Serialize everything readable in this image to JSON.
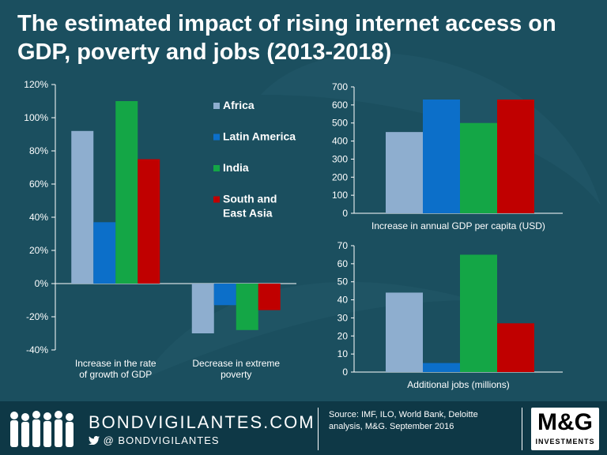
{
  "title": "The estimated impact of rising internet access on GDP, poverty and jobs (2013-2018)",
  "colors": {
    "background": "#1b4f5f",
    "axis": "#ffffff",
    "series": [
      "#8eaecf",
      "#0c6fc9",
      "#14a646",
      "#c00000"
    ]
  },
  "legend": [
    "Africa",
    "Latin America",
    "India",
    "South and East Asia"
  ],
  "chart_data": [
    {
      "type": "bar",
      "categories": [
        "Increase in the rate of growth of GDP",
        "Decrease in extreme poverty"
      ],
      "series": [
        {
          "name": "Africa",
          "values": [
            92,
            -30
          ]
        },
        {
          "name": "Latin America",
          "values": [
            37,
            -13
          ]
        },
        {
          "name": "India",
          "values": [
            110,
            -28
          ]
        },
        {
          "name": "South and East Asia",
          "values": [
            75,
            -16
          ]
        }
      ],
      "ylim": [
        -40,
        120
      ],
      "yticks": [
        "-40%",
        "-20%",
        "0%",
        "20%",
        "40%",
        "60%",
        "80%",
        "100%",
        "120%"
      ],
      "yunit": "%",
      "legend_position": "right"
    },
    {
      "type": "bar",
      "categories": [
        "Africa",
        "Latin America",
        "India",
        "South and East Asia"
      ],
      "values": [
        450,
        630,
        500,
        630
      ],
      "xlabel": "Increase in annual GDP per capita (USD)",
      "ylim": [
        0,
        700
      ],
      "yticks": [
        "0",
        "100",
        "200",
        "300",
        "400",
        "500",
        "600",
        "700"
      ]
    },
    {
      "type": "bar",
      "categories": [
        "Africa",
        "Latin America",
        "India",
        "South and East Asia"
      ],
      "values": [
        44,
        5,
        65,
        27
      ],
      "xlabel": "Additional jobs (millions)",
      "ylim": [
        0,
        70
      ],
      "yticks": [
        "0",
        "10",
        "20",
        "30",
        "40",
        "50",
        "60",
        "70"
      ]
    }
  ],
  "footer": {
    "brand": "BONDVIGILANTES.COM",
    "handle": "@ BONDVIGILANTES",
    "source": "Source: IMF, ILO, World Bank, Deloitte analysis, M&G. September 2016",
    "logo": "M&G",
    "logo_sub": "INVESTMENTS"
  }
}
